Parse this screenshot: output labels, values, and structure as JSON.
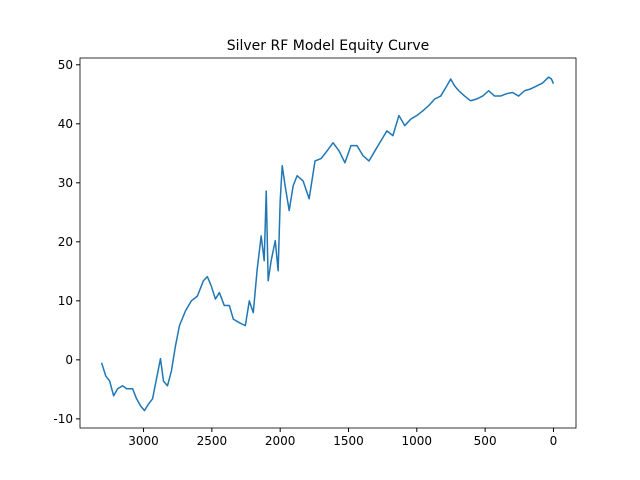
{
  "chart_data": {
    "type": "line",
    "title": "Silver RF Model Equity Curve",
    "x": [
      3307,
      3277,
      3248,
      3219,
      3190,
      3153,
      3124,
      3080,
      3051,
      3022,
      2993,
      2964,
      2934,
      2905,
      2876,
      2854,
      2825,
      2796,
      2766,
      2737,
      2693,
      2650,
      2606,
      2562,
      2533,
      2504,
      2474,
      2445,
      2409,
      2372,
      2343,
      2299,
      2255,
      2226,
      2197,
      2168,
      2139,
      2117,
      2102,
      2088,
      2066,
      2036,
      2015,
      2000,
      1985,
      1964,
      1934,
      1905,
      1876,
      1832,
      1788,
      1745,
      1701,
      1657,
      1613,
      1569,
      1526,
      1482,
      1438,
      1394,
      1350,
      1307,
      1263,
      1219,
      1175,
      1131,
      1088,
      1044,
      1000,
      956,
      912,
      869,
      825,
      781,
      752,
      723,
      693,
      650,
      606,
      562,
      518,
      474,
      431,
      387,
      343,
      299,
      255,
      212,
      168,
      124,
      80,
      36,
      15,
      0
    ],
    "series": [
      {
        "color": "#1f77b4",
        "values": [
          -0.5,
          -2.7,
          -3.6,
          -6.1,
          -4.9,
          -4.4,
          -4.9,
          -4.9,
          -6.6,
          -7.8,
          -8.6,
          -7.5,
          -6.6,
          -3.2,
          0.2,
          -3.6,
          -4.4,
          -1.9,
          2.4,
          5.8,
          8.3,
          10.0,
          10.8,
          13.4,
          14.1,
          12.5,
          10.3,
          11.4,
          9.2,
          9.2,
          6.9,
          6.3,
          5.8,
          10.0,
          8.0,
          15.4,
          21.0,
          16.8,
          28.6,
          13.4,
          16.8,
          20.2,
          15.1,
          26.9,
          32.9,
          29.5,
          25.3,
          29.5,
          31.2,
          30.3,
          27.3,
          33.7,
          34.1,
          35.4,
          36.8,
          35.4,
          33.4,
          36.3,
          36.3,
          34.6,
          33.7,
          35.4,
          37.1,
          38.8,
          38.0,
          41.4,
          39.7,
          40.8,
          41.4,
          42.2,
          43.1,
          44.2,
          44.7,
          46.4,
          47.6,
          46.4,
          45.6,
          44.7,
          43.9,
          44.2,
          44.7,
          45.6,
          44.7,
          44.7,
          45.1,
          45.3,
          44.7,
          45.6,
          45.9,
          46.4,
          46.9,
          47.9,
          47.6,
          46.8
        ]
      }
    ],
    "xlim": [
      3465,
      -165
    ],
    "xticks": [
      3000,
      2500,
      2000,
      1500,
      1000,
      500,
      0
    ],
    "ylim": [
      -11.55,
      51.15
    ],
    "yticks": [
      -10,
      0,
      10,
      20,
      30,
      40,
      50
    ]
  }
}
